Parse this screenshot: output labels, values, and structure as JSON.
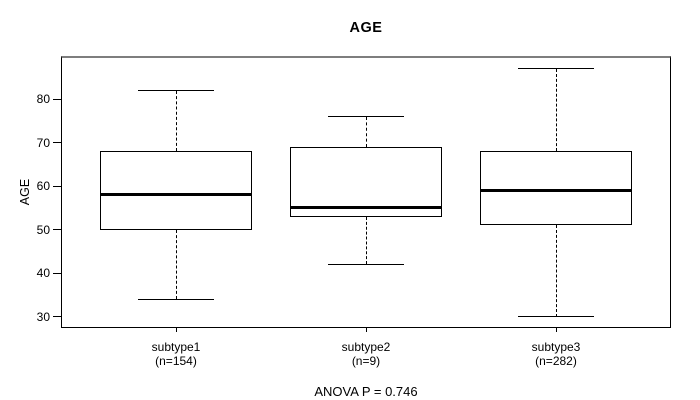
{
  "figure": {
    "title": "AGE",
    "y_axis_label": "AGE",
    "annotation": "ANOVA P = 0.746"
  },
  "chart_data": {
    "type": "boxplot",
    "title": "AGE",
    "xlabel": "",
    "ylabel": "AGE",
    "ylim": [
      27.6,
      89.5
    ],
    "yticks": [
      30,
      40,
      50,
      60,
      70,
      80
    ],
    "grid": false,
    "legend": false,
    "whisker_line_style": "dashed",
    "annotation": "ANOVA P = 0.746",
    "groups": [
      {
        "label": "subtype1",
        "sublabel": "(n=154)",
        "n": 154,
        "whisker_low": 34,
        "q1": 50,
        "median": 58,
        "q3": 68,
        "whisker_high": 82,
        "outliers": []
      },
      {
        "label": "subtype2",
        "sublabel": "(n=9)",
        "n": 9,
        "whisker_low": 42,
        "q1": 53,
        "median": 55,
        "q3": 69,
        "whisker_high": 76,
        "outliers": []
      },
      {
        "label": "subtype3",
        "sublabel": "(n=282)",
        "n": 282,
        "whisker_low": 30,
        "q1": 51,
        "median": 59,
        "q3": 68,
        "whisker_high": 87,
        "outliers": []
      }
    ],
    "colors": {
      "line": "#000000",
      "frame_top": "#7e7e7e",
      "background": "#ffffff"
    }
  }
}
